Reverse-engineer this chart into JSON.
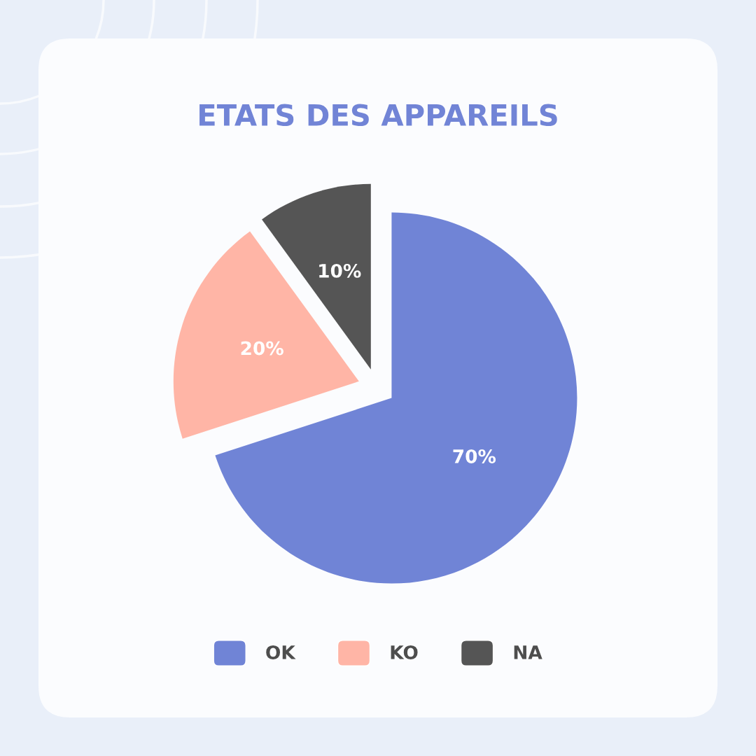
{
  "chart_data": {
    "type": "pie",
    "title": "ETATS DES APPAREILS",
    "categories": [
      "OK",
      "KO",
      "NA"
    ],
    "values": [
      70,
      20,
      10
    ],
    "colors": [
      "#7084d6",
      "#ffb5a6",
      "#555555"
    ],
    "value_labels": [
      "70%",
      "20%",
      "10%"
    ],
    "legend": "bottom"
  }
}
